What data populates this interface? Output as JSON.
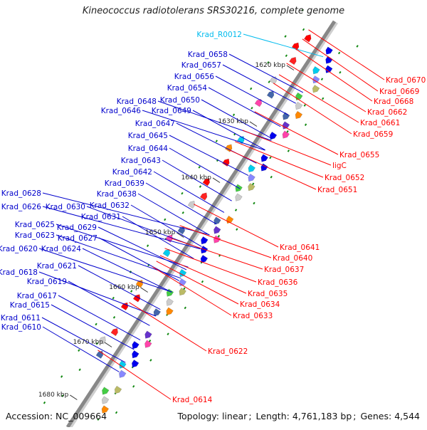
{
  "title": "Kineococcus radiotolerans SRS30216, complete genome",
  "footer": {
    "accession_label": "Accession:",
    "accession": "NC_009664",
    "topology_label": "Topology:",
    "topology": "linear",
    "length_label": "Length:",
    "length": "4,761,183 bp",
    "genes_label": "Genes:",
    "genes": "4,544"
  },
  "colors": {
    "forward_label": "#0000cc",
    "reverse_label": "#ff0000",
    "rna_label": "#00bbee",
    "backbone": "#888888",
    "forward_gene": "#0000ee",
    "reverse_gene": "#ff0000"
  },
  "kbp_marks": [
    "1620 kbp",
    "1630 kbp",
    "1640 kbp",
    "1650 kbp",
    "1660 kbp",
    "1670 kbp",
    "1680 kbp"
  ],
  "forward_labels": [
    "Krad_0658",
    "Krad_0657",
    "Krad_0656",
    "Krad_0654",
    "Krad_0650",
    "Krad_0648",
    "Krad_0649",
    "Krad_0646",
    "Krad_0647",
    "Krad_0645",
    "Krad_0644",
    "Krad_0643",
    "Krad_0642",
    "Krad_0639",
    "Krad_0638",
    "Krad_0632",
    "Krad_0628",
    "Krad_0630",
    "Krad_0631",
    "Krad_0626",
    "Krad_0629",
    "Krad_0625",
    "Krad_0627",
    "Krad_0623",
    "Krad_0620",
    "Krad_0624",
    "Krad_0621",
    "Krad_0618",
    "Krad_0619",
    "Krad_0617",
    "Krad_0615",
    "Krad_0611",
    "Krad_0610"
  ],
  "rna_labels": [
    "Krad_R0012"
  ],
  "reverse_labels": [
    "Krad_0670",
    "Krad_0669",
    "Krad_0668",
    "Krad_0662",
    "Krad_0661",
    "Krad_0659",
    "Krad_0655",
    "ligC",
    "Krad_0652",
    "Krad_0651",
    "Krad_0641",
    "Krad_0640",
    "Krad_0637",
    "Krad_0636",
    "Krad_0635",
    "Krad_0634",
    "Krad_0633",
    "Krad_0622",
    "Krad_0614"
  ]
}
